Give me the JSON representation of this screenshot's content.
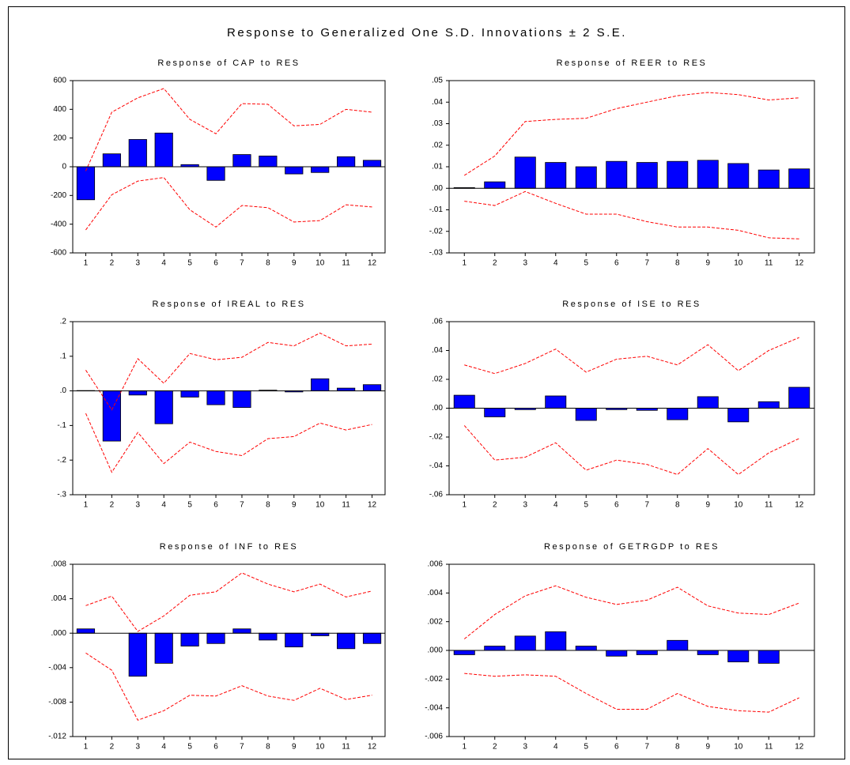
{
  "title": "Response to Generalized One S.D. Innovations ± 2 S.E.",
  "chart_data": [
    {
      "type": "bar",
      "title": "Response of CAP to RES",
      "categories": [
        "1",
        "2",
        "3",
        "4",
        "5",
        "6",
        "7",
        "8",
        "9",
        "10",
        "11",
        "12"
      ],
      "series": [
        {
          "type": "bar",
          "color": "#0000ff",
          "values": [
            -230,
            90,
            190,
            235,
            15,
            -95,
            85,
            75,
            -50,
            -40,
            70,
            45
          ]
        },
        {
          "type": "line",
          "line_style": "dashed",
          "color": "#ff0000",
          "values": [
            -30,
            380,
            480,
            545,
            330,
            230,
            440,
            435,
            285,
            295,
            400,
            380
          ]
        },
        {
          "type": "line",
          "line_style": "dashed",
          "color": "#ff0000",
          "values": [
            -440,
            -195,
            -100,
            -75,
            -300,
            -420,
            -270,
            -285,
            -385,
            -375,
            -265,
            -280
          ]
        }
      ],
      "ylim": [
        -600,
        600
      ],
      "yticks": [
        600,
        400,
        200,
        0,
        -200,
        -400,
        -600
      ]
    },
    {
      "type": "bar",
      "title": "Response of REER to RES",
      "categories": [
        "1",
        "2",
        "3",
        "4",
        "5",
        "6",
        "7",
        "8",
        "9",
        "10",
        "11",
        "12"
      ],
      "series": [
        {
          "type": "bar",
          "color": "#0000ff",
          "values": [
            0.0003,
            0.003,
            0.0145,
            0.012,
            0.01,
            0.0125,
            0.012,
            0.0125,
            0.013,
            0.0115,
            0.0085,
            0.009
          ]
        },
        {
          "type": "line",
          "line_style": "dashed",
          "color": "#ff0000",
          "values": [
            0.006,
            0.015,
            0.031,
            0.032,
            0.0325,
            0.037,
            0.04,
            0.043,
            0.0445,
            0.0435,
            0.041,
            0.042
          ]
        },
        {
          "type": "line",
          "line_style": "dashed",
          "color": "#ff0000",
          "values": [
            -0.006,
            -0.008,
            -0.0015,
            -0.007,
            -0.012,
            -0.012,
            -0.0155,
            -0.018,
            -0.018,
            -0.0195,
            -0.023,
            -0.0235
          ]
        }
      ],
      "ylim": [
        -0.03,
        0.05
      ],
      "yticks": [
        {
          "value": 0.05,
          "label": ".05"
        },
        {
          "value": 0.04,
          "label": ".04"
        },
        {
          "value": 0.03,
          "label": ".03"
        },
        {
          "value": 0.02,
          "label": ".02"
        },
        {
          "value": 0.01,
          "label": ".01"
        },
        {
          "value": 0,
          "label": ".00"
        },
        {
          "value": -0.01,
          "label": "-.01"
        },
        {
          "value": -0.02,
          "label": "-.02"
        },
        {
          "value": -0.03,
          "label": "-.03"
        }
      ]
    },
    {
      "type": "bar",
      "title": "Response of IREAL to RES",
      "categories": [
        "1",
        "2",
        "3",
        "4",
        "5",
        "6",
        "7",
        "8",
        "9",
        "10",
        "11",
        "12"
      ],
      "series": [
        {
          "type": "bar",
          "color": "#0000ff",
          "values": [
            0.001,
            -0.145,
            -0.012,
            -0.095,
            -0.018,
            -0.04,
            -0.048,
            0.002,
            -0.003,
            0.035,
            0.008,
            0.018
          ]
        },
        {
          "type": "line",
          "line_style": "dashed",
          "color": "#ff0000",
          "values": [
            0.06,
            -0.055,
            0.093,
            0.022,
            0.108,
            0.09,
            0.097,
            0.14,
            0.13,
            0.167,
            0.13,
            0.135
          ]
        },
        {
          "type": "line",
          "line_style": "dashed",
          "color": "#ff0000",
          "values": [
            -0.065,
            -0.235,
            -0.12,
            -0.21,
            -0.148,
            -0.175,
            -0.187,
            -0.138,
            -0.132,
            -0.093,
            -0.113,
            -0.097
          ]
        }
      ],
      "ylim": [
        -0.3,
        0.2
      ],
      "yticks": [
        {
          "value": 0.2,
          "label": ".2"
        },
        {
          "value": 0.1,
          "label": ".1"
        },
        {
          "value": 0,
          "label": ".0"
        },
        {
          "value": -0.1,
          "label": "-.1"
        },
        {
          "value": -0.2,
          "label": "-.2"
        },
        {
          "value": -0.3,
          "label": "-.3"
        }
      ]
    },
    {
      "type": "bar",
      "title": "Response of ISE to RES",
      "categories": [
        "1",
        "2",
        "3",
        "4",
        "5",
        "6",
        "7",
        "8",
        "9",
        "10",
        "11",
        "12"
      ],
      "series": [
        {
          "type": "bar",
          "color": "#0000ff",
          "values": [
            0.009,
            -0.006,
            -0.001,
            0.0085,
            -0.0085,
            -0.001,
            -0.0015,
            -0.008,
            0.008,
            -0.0095,
            0.0045,
            0.0145
          ]
        },
        {
          "type": "line",
          "line_style": "dashed",
          "color": "#ff0000",
          "values": [
            0.03,
            0.024,
            0.031,
            0.041,
            0.025,
            0.034,
            0.036,
            0.03,
            0.044,
            0.026,
            0.04,
            0.049
          ]
        },
        {
          "type": "line",
          "line_style": "dashed",
          "color": "#ff0000",
          "values": [
            -0.012,
            -0.036,
            -0.034,
            -0.024,
            -0.043,
            -0.036,
            -0.039,
            -0.046,
            -0.028,
            -0.046,
            -0.031,
            -0.021
          ]
        }
      ],
      "ylim": [
        -0.06,
        0.06
      ],
      "yticks": [
        {
          "value": 0.06,
          "label": ".06"
        },
        {
          "value": 0.04,
          "label": ".04"
        },
        {
          "value": 0.02,
          "label": ".02"
        },
        {
          "value": 0,
          "label": ".00"
        },
        {
          "value": -0.02,
          "label": "-.02"
        },
        {
          "value": -0.04,
          "label": "-.04"
        },
        {
          "value": -0.06,
          "label": "-.06"
        }
      ]
    },
    {
      "type": "bar",
      "title": "Response of INF to RES",
      "categories": [
        "1",
        "2",
        "3",
        "4",
        "5",
        "6",
        "7",
        "8",
        "9",
        "10",
        "11",
        "12"
      ],
      "series": [
        {
          "type": "bar",
          "color": "#0000ff",
          "values": [
            0.0005,
            0,
            -0.005,
            -0.0035,
            -0.0015,
            -0.0012,
            0.0005,
            -0.0008,
            -0.0016,
            -0.0003,
            -0.0018,
            -0.0012
          ]
        },
        {
          "type": "line",
          "line_style": "dashed",
          "color": "#ff0000",
          "values": [
            0.0032,
            0.0043,
            0.0002,
            0.002,
            0.0044,
            0.0048,
            0.007,
            0.0057,
            0.0048,
            0.0057,
            0.0042,
            0.0049
          ]
        },
        {
          "type": "line",
          "line_style": "dashed",
          "color": "#ff0000",
          "values": [
            -0.0023,
            -0.0043,
            -0.0101,
            -0.009,
            -0.0072,
            -0.0073,
            -0.0061,
            -0.0073,
            -0.0078,
            -0.0064,
            -0.0077,
            -0.0072
          ]
        }
      ],
      "ylim": [
        -0.012,
        0.008
      ],
      "yticks": [
        {
          "value": 0.008,
          "label": ".008"
        },
        {
          "value": 0.004,
          "label": ".004"
        },
        {
          "value": 0,
          "label": ".000"
        },
        {
          "value": -0.004,
          "label": "-.004"
        },
        {
          "value": -0.008,
          "label": "-.008"
        },
        {
          "value": -0.012,
          "label": "-.012"
        }
      ]
    },
    {
      "type": "bar",
      "title": "Response of GETRGDP to RES",
      "categories": [
        "1",
        "2",
        "3",
        "4",
        "5",
        "6",
        "7",
        "8",
        "9",
        "10",
        "11",
        "12"
      ],
      "series": [
        {
          "type": "bar",
          "color": "#0000ff",
          "values": [
            -0.0003,
            0.0003,
            0.001,
            0.0013,
            0.0003,
            -0.0004,
            -0.0003,
            0.0007,
            -0.0003,
            -0.0008,
            -0.0009,
            0
          ]
        },
        {
          "type": "line",
          "line_style": "dashed",
          "color": "#ff0000",
          "values": [
            0.0008,
            0.0025,
            0.0038,
            0.0045,
            0.0037,
            0.0032,
            0.0035,
            0.0044,
            0.0031,
            0.0026,
            0.0025,
            0.0033
          ]
        },
        {
          "type": "line",
          "line_style": "dashed",
          "color": "#ff0000",
          "values": [
            -0.0016,
            -0.0018,
            -0.0017,
            -0.0018,
            -0.003,
            -0.0041,
            -0.0041,
            -0.003,
            -0.0039,
            -0.0042,
            -0.0043,
            -0.0033
          ]
        }
      ],
      "ylim": [
        -0.006,
        0.006
      ],
      "yticks": [
        {
          "value": 0.006,
          "label": ".006"
        },
        {
          "value": 0.004,
          "label": ".004"
        },
        {
          "value": 0.002,
          "label": ".002"
        },
        {
          "value": 0,
          "label": ".000"
        },
        {
          "value": -0.002,
          "label": "-.002"
        },
        {
          "value": -0.004,
          "label": "-.004"
        },
        {
          "value": -0.006,
          "label": "-.006"
        }
      ]
    }
  ]
}
